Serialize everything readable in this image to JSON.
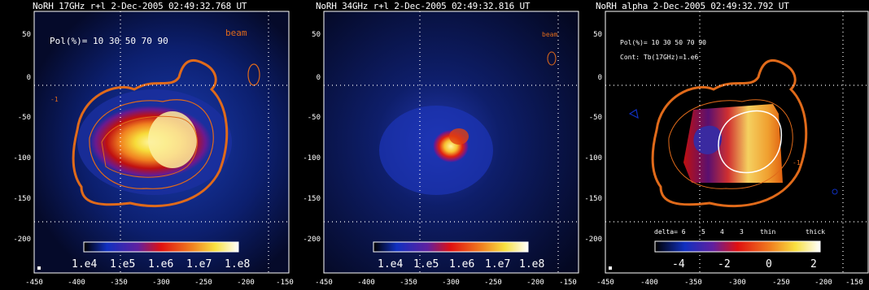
{
  "panels": [
    {
      "title": "NoRH 17GHz r+l  2-Dec-2005 02:49:32.768 UT",
      "note": "Pol(%)= 10 30 50 70 90",
      "beam_label": "beam",
      "colorbar_labels": [
        "1.e4",
        "1.e5",
        "1.e6",
        "1.e7",
        "1.e8"
      ],
      "contour_label": "-1"
    },
    {
      "title": "NoRH 34GHz r+l  2-Dec-2005 02:49:32.816 UT",
      "beam_label": "beam",
      "colorbar_labels": [
        "1.e4",
        "1.e5",
        "1.e6",
        "1.e7",
        "1.e8"
      ]
    },
    {
      "title": "NoRH alpha    2-Dec-2005 02:49:32.792 UT",
      "note": "Pol(%)= 10 30 50 70 90",
      "note2": "Cont: Tb(17GHz)=1.e6",
      "contour_label": "-1",
      "alpha_scale": [
        "delta= 6",
        "5",
        "4",
        "3",
        "thin",
        "thick"
      ],
      "colorbar_labels": [
        "-4",
        "-2",
        "0",
        "2"
      ]
    }
  ],
  "y_ticks": [
    "50",
    "0",
    "-50",
    "-100",
    "-150",
    "-200"
  ],
  "x_ticks": [
    "-450",
    "-400",
    "-350",
    "-300",
    "-250",
    "-200",
    "-150"
  ],
  "colors": {
    "contour": "#e06a1a",
    "background": "#000000",
    "map_blue": "#0a1d6b"
  }
}
